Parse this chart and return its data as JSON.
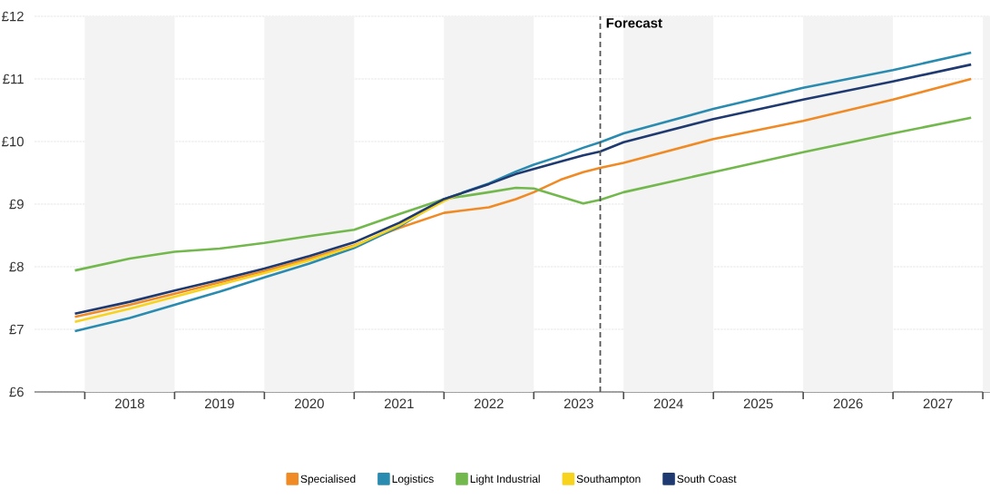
{
  "chart_data": {
    "type": "line",
    "x": [
      2017.89,
      2018.5,
      2019.0,
      2019.5,
      2020.0,
      2020.5,
      2021.0,
      2021.5,
      2022.0,
      2022.5,
      2022.8,
      2023.0,
      2023.3,
      2023.55,
      2023.74,
      2024.0,
      2025.0,
      2026.0,
      2027.0,
      2027.87
    ],
    "series": [
      {
        "name": "Specialised",
        "color": "#f08a24",
        "values": [
          7.2,
          7.39,
          7.57,
          7.75,
          7.93,
          8.13,
          8.34,
          8.62,
          8.86,
          8.95,
          9.08,
          9.19,
          9.39,
          9.51,
          9.58,
          9.66,
          10.04,
          10.33,
          10.67,
          11.0
        ]
      },
      {
        "name": "Logistics",
        "color": "#2a8bb0",
        "values": [
          6.97,
          7.18,
          7.39,
          7.6,
          7.83,
          8.05,
          8.3,
          8.64,
          9.08,
          9.33,
          9.52,
          9.63,
          9.77,
          9.9,
          9.99,
          10.13,
          10.52,
          10.86,
          11.14,
          11.42
        ]
      },
      {
        "name": "Light Industrial",
        "color": "#72b84c",
        "values": [
          7.94,
          8.13,
          8.24,
          8.29,
          8.38,
          8.49,
          8.59,
          8.84,
          9.08,
          9.19,
          9.26,
          9.25,
          9.12,
          9.01,
          9.07,
          9.19,
          9.51,
          9.83,
          10.13,
          10.38
        ]
      },
      {
        "name": "Southampton",
        "color": "#f7d31e",
        "x": [
          2017.89,
          2018.5,
          2019.0,
          2019.5,
          2020.0,
          2020.5,
          2021.0,
          2021.5,
          2022.0,
          2022.2
        ],
        "values": [
          7.12,
          7.33,
          7.52,
          7.71,
          7.9,
          8.1,
          8.33,
          8.66,
          9.05,
          9.18
        ]
      },
      {
        "name": "South Coast",
        "color": "#1f3a70",
        "values": [
          7.25,
          7.44,
          7.62,
          7.79,
          7.97,
          8.17,
          8.39,
          8.7,
          9.08,
          9.32,
          9.48,
          9.56,
          9.68,
          9.78,
          9.84,
          9.99,
          10.36,
          10.67,
          10.96,
          11.23
        ]
      }
    ],
    "xlim": [
      2017.44,
      2028.08
    ],
    "xticks": [
      {
        "value": 2018,
        "label": null
      },
      {
        "value": 2018.5,
        "label": "2018"
      },
      {
        "value": 2019,
        "label": null
      },
      {
        "value": 2019.5,
        "label": "2019"
      },
      {
        "value": 2020,
        "label": null
      },
      {
        "value": 2020.5,
        "label": "2020"
      },
      {
        "value": 2021,
        "label": null
      },
      {
        "value": 2021.5,
        "label": "2021"
      },
      {
        "value": 2022,
        "label": null
      },
      {
        "value": 2022.5,
        "label": "2022"
      },
      {
        "value": 2023,
        "label": null
      },
      {
        "value": 2023.5,
        "label": "2023"
      },
      {
        "value": 2024,
        "label": null
      },
      {
        "value": 2024.5,
        "label": "2024"
      },
      {
        "value": 2025,
        "label": null
      },
      {
        "value": 2025.5,
        "label": "2025"
      },
      {
        "value": 2026,
        "label": null
      },
      {
        "value": 2026.5,
        "label": "2026"
      },
      {
        "value": 2027,
        "label": null
      },
      {
        "value": 2027.5,
        "label": "2027"
      },
      {
        "value": 2028,
        "label": null
      }
    ],
    "ylim": [
      6,
      12
    ],
    "yticks": [
      {
        "value": 6,
        "label": "£6"
      },
      {
        "value": 7,
        "label": "£7"
      },
      {
        "value": 8,
        "label": "£8"
      },
      {
        "value": 9,
        "label": "£9"
      },
      {
        "value": 10,
        "label": "£10"
      },
      {
        "value": 11,
        "label": "£11"
      },
      {
        "value": 12,
        "label": "£12"
      }
    ],
    "ref_lines": [
      {
        "axis": "x",
        "value": 2023.74,
        "label": "Forecast",
        "color": "#555555",
        "line_style": "dashed"
      }
    ],
    "bands": [
      {
        "axis": "x",
        "from": 2018,
        "to": 2019,
        "color": "#f3f3f3"
      },
      {
        "axis": "x",
        "from": 2020,
        "to": 2021,
        "color": "#f3f3f3"
      },
      {
        "axis": "x",
        "from": 2022,
        "to": 2023,
        "color": "#f3f3f3"
      },
      {
        "axis": "x",
        "from": 2024,
        "to": 2025,
        "color": "#f3f3f3"
      },
      {
        "axis": "x",
        "from": 2026,
        "to": 2027,
        "color": "#f3f3f3"
      },
      {
        "axis": "x",
        "from": 2028,
        "to": 2028.08,
        "color": "#f3f3f3"
      }
    ],
    "grid": "y",
    "legend": "bottom",
    "marker": "none",
    "line_style": "solid"
  }
}
